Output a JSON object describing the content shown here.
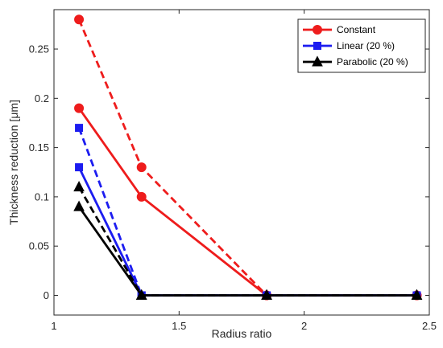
{
  "chart_data": {
    "type": "line",
    "xlabel": "Radius ratio",
    "ylabel": "Thickness reduction [μm]",
    "xlim": [
      1,
      2.5
    ],
    "ylim": [
      -0.02,
      0.29
    ],
    "xticks": [
      1,
      1.5,
      2,
      2.5
    ],
    "xtick_labels": [
      "1",
      "1.5",
      "2",
      "2.5"
    ],
    "yticks": [
      0,
      0.05,
      0.1,
      0.15,
      0.2,
      0.25
    ],
    "ytick_labels": [
      "0",
      "0.05",
      "0.1",
      "0.15",
      "0.2",
      "0.25"
    ],
    "grid": false,
    "legend_position": "top-right",
    "x": [
      1.1,
      1.35,
      1.85,
      2.45
    ],
    "series": [
      {
        "name": "Constant",
        "style": "solid",
        "marker": "circle",
        "color": "#ee1c1c",
        "values": [
          0.19,
          0.1,
          0.0,
          0.0
        ],
        "in_legend": true
      },
      {
        "name": "",
        "style": "dashed",
        "marker": "circle",
        "color": "#ee1c1c",
        "values": [
          0.28,
          0.13,
          0.0,
          0.0
        ],
        "in_legend": false
      },
      {
        "name": "Linear (20 %)",
        "style": "solid",
        "marker": "square",
        "color": "#1c1cf0",
        "values": [
          0.13,
          0.0,
          0.0,
          0.0
        ],
        "in_legend": true
      },
      {
        "name": "",
        "style": "dashed",
        "marker": "square",
        "color": "#1c1cf0",
        "values": [
          0.17,
          0.0,
          0.0,
          0.0
        ],
        "in_legend": false
      },
      {
        "name": "Parabolic (20 %)",
        "style": "solid",
        "marker": "triangle",
        "color": "#000000",
        "values": [
          0.09,
          0.0,
          0.0,
          0.0
        ],
        "in_legend": true
      },
      {
        "name": "",
        "style": "dashed",
        "marker": "triangle",
        "color": "#000000",
        "values": [
          0.11,
          0.0,
          0.0,
          0.0
        ],
        "in_legend": false
      }
    ]
  }
}
